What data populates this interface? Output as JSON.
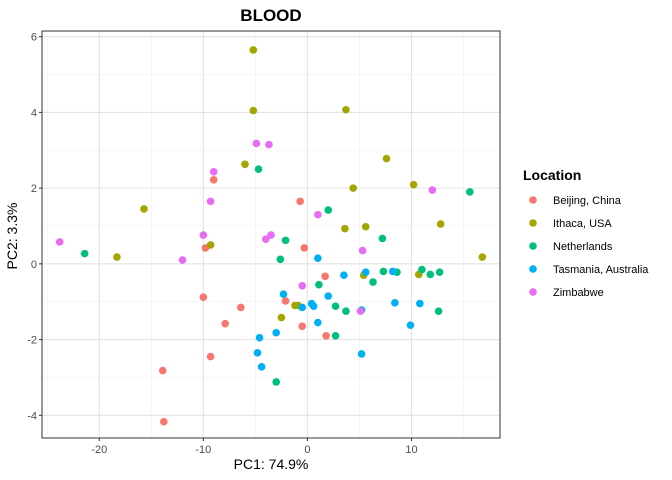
{
  "chart_data": {
    "type": "scatter",
    "title": "BLOOD",
    "xlabel": "PC1: 74.9%",
    "ylabel": "PC2: 3.3%",
    "xlim": [
      -25.5,
      18.5
    ],
    "ylim": [
      -4.6,
      6.15
    ],
    "x_ticks": [
      -20,
      -10,
      0,
      10
    ],
    "y_ticks": [
      -4,
      -2,
      0,
      2,
      4,
      6
    ],
    "x_tick_labels": [
      "-20",
      "-10",
      "0",
      "10"
    ],
    "y_tick_labels": [
      "-4",
      "-2",
      "0",
      "2",
      "4",
      "6"
    ],
    "grid": true,
    "legend": {
      "title": "Location",
      "position": "right"
    },
    "series": [
      {
        "name": "Beijing, China",
        "color": "#F8766D",
        "points": [
          [
            -0.7,
            1.65
          ],
          [
            -0.3,
            0.42
          ],
          [
            -9.8,
            0.42
          ],
          [
            -9.0,
            2.22
          ],
          [
            -10.0,
            -0.88
          ],
          [
            -6.4,
            -1.15
          ],
          [
            -7.9,
            -1.58
          ],
          [
            -9.3,
            -2.45
          ],
          [
            -13.9,
            -2.82
          ],
          [
            -13.8,
            -4.17
          ],
          [
            -2.1,
            -0.98
          ],
          [
            -0.5,
            -1.65
          ],
          [
            1.8,
            -1.9
          ],
          [
            1.7,
            -0.33
          ]
        ]
      },
      {
        "name": "Ithaca, USA",
        "color": "#A3A500",
        "points": [
          [
            -5.2,
            5.65
          ],
          [
            -5.2,
            4.05
          ],
          [
            3.7,
            4.07
          ],
          [
            -6.0,
            2.63
          ],
          [
            7.6,
            2.78
          ],
          [
            4.4,
            2.0
          ],
          [
            10.2,
            2.09
          ],
          [
            -15.7,
            1.45
          ],
          [
            -18.3,
            0.18
          ],
          [
            -9.3,
            0.5
          ],
          [
            3.6,
            0.93
          ],
          [
            5.6,
            0.98
          ],
          [
            12.8,
            1.05
          ],
          [
            16.8,
            0.18
          ],
          [
            10.7,
            -0.28
          ],
          [
            5.4,
            -0.3
          ],
          [
            -1.2,
            -1.1
          ],
          [
            -0.9,
            -1.1
          ],
          [
            -2.5,
            -1.42
          ]
        ]
      },
      {
        "name": "Netherlands",
        "color": "#00BF7D",
        "points": [
          [
            -4.7,
            2.5
          ],
          [
            2.0,
            1.42
          ],
          [
            15.6,
            1.9
          ],
          [
            -21.4,
            0.27
          ],
          [
            -2.1,
            0.62
          ],
          [
            -2.6,
            0.12
          ],
          [
            7.2,
            0.67
          ],
          [
            11.0,
            -0.15
          ],
          [
            11.8,
            -0.28
          ],
          [
            12.7,
            -0.22
          ],
          [
            7.3,
            -0.2
          ],
          [
            8.6,
            -0.22
          ],
          [
            6.3,
            -0.48
          ],
          [
            1.1,
            -0.55
          ],
          [
            2.7,
            -1.12
          ],
          [
            3.7,
            -1.25
          ],
          [
            12.6,
            -1.25
          ],
          [
            2.7,
            -1.9
          ],
          [
            -3.0,
            -3.12
          ]
        ]
      },
      {
        "name": "Tasmania, Australia",
        "color": "#00B0F6",
        "points": [
          [
            1.0,
            0.15
          ],
          [
            3.5,
            -0.3
          ],
          [
            5.6,
            -0.22
          ],
          [
            8.2,
            -0.2
          ],
          [
            -2.3,
            -0.8
          ],
          [
            2.0,
            -0.85
          ],
          [
            0.4,
            -1.05
          ],
          [
            0.6,
            -1.12
          ],
          [
            -0.5,
            -1.15
          ],
          [
            1.0,
            -1.55
          ],
          [
            5.2,
            -1.22
          ],
          [
            8.4,
            -1.03
          ],
          [
            10.8,
            -1.05
          ],
          [
            9.9,
            -1.62
          ],
          [
            -4.6,
            -1.95
          ],
          [
            -3.0,
            -1.82
          ],
          [
            -4.8,
            -2.35
          ],
          [
            -4.4,
            -2.72
          ],
          [
            5.2,
            -2.38
          ]
        ]
      },
      {
        "name": "Zimbabwe",
        "color": "#E76BF3",
        "points": [
          [
            -4.9,
            3.18
          ],
          [
            -3.7,
            3.15
          ],
          [
            -9.0,
            2.43
          ],
          [
            12.0,
            1.95
          ],
          [
            -9.3,
            1.65
          ],
          [
            1.0,
            1.3
          ],
          [
            -23.8,
            0.58
          ],
          [
            -10.0,
            0.76
          ],
          [
            -3.5,
            0.76
          ],
          [
            -4.0,
            0.65
          ],
          [
            5.3,
            0.35
          ],
          [
            -12.0,
            0.1
          ],
          [
            -0.5,
            -0.58
          ],
          [
            5.1,
            -1.25
          ]
        ]
      }
    ]
  }
}
